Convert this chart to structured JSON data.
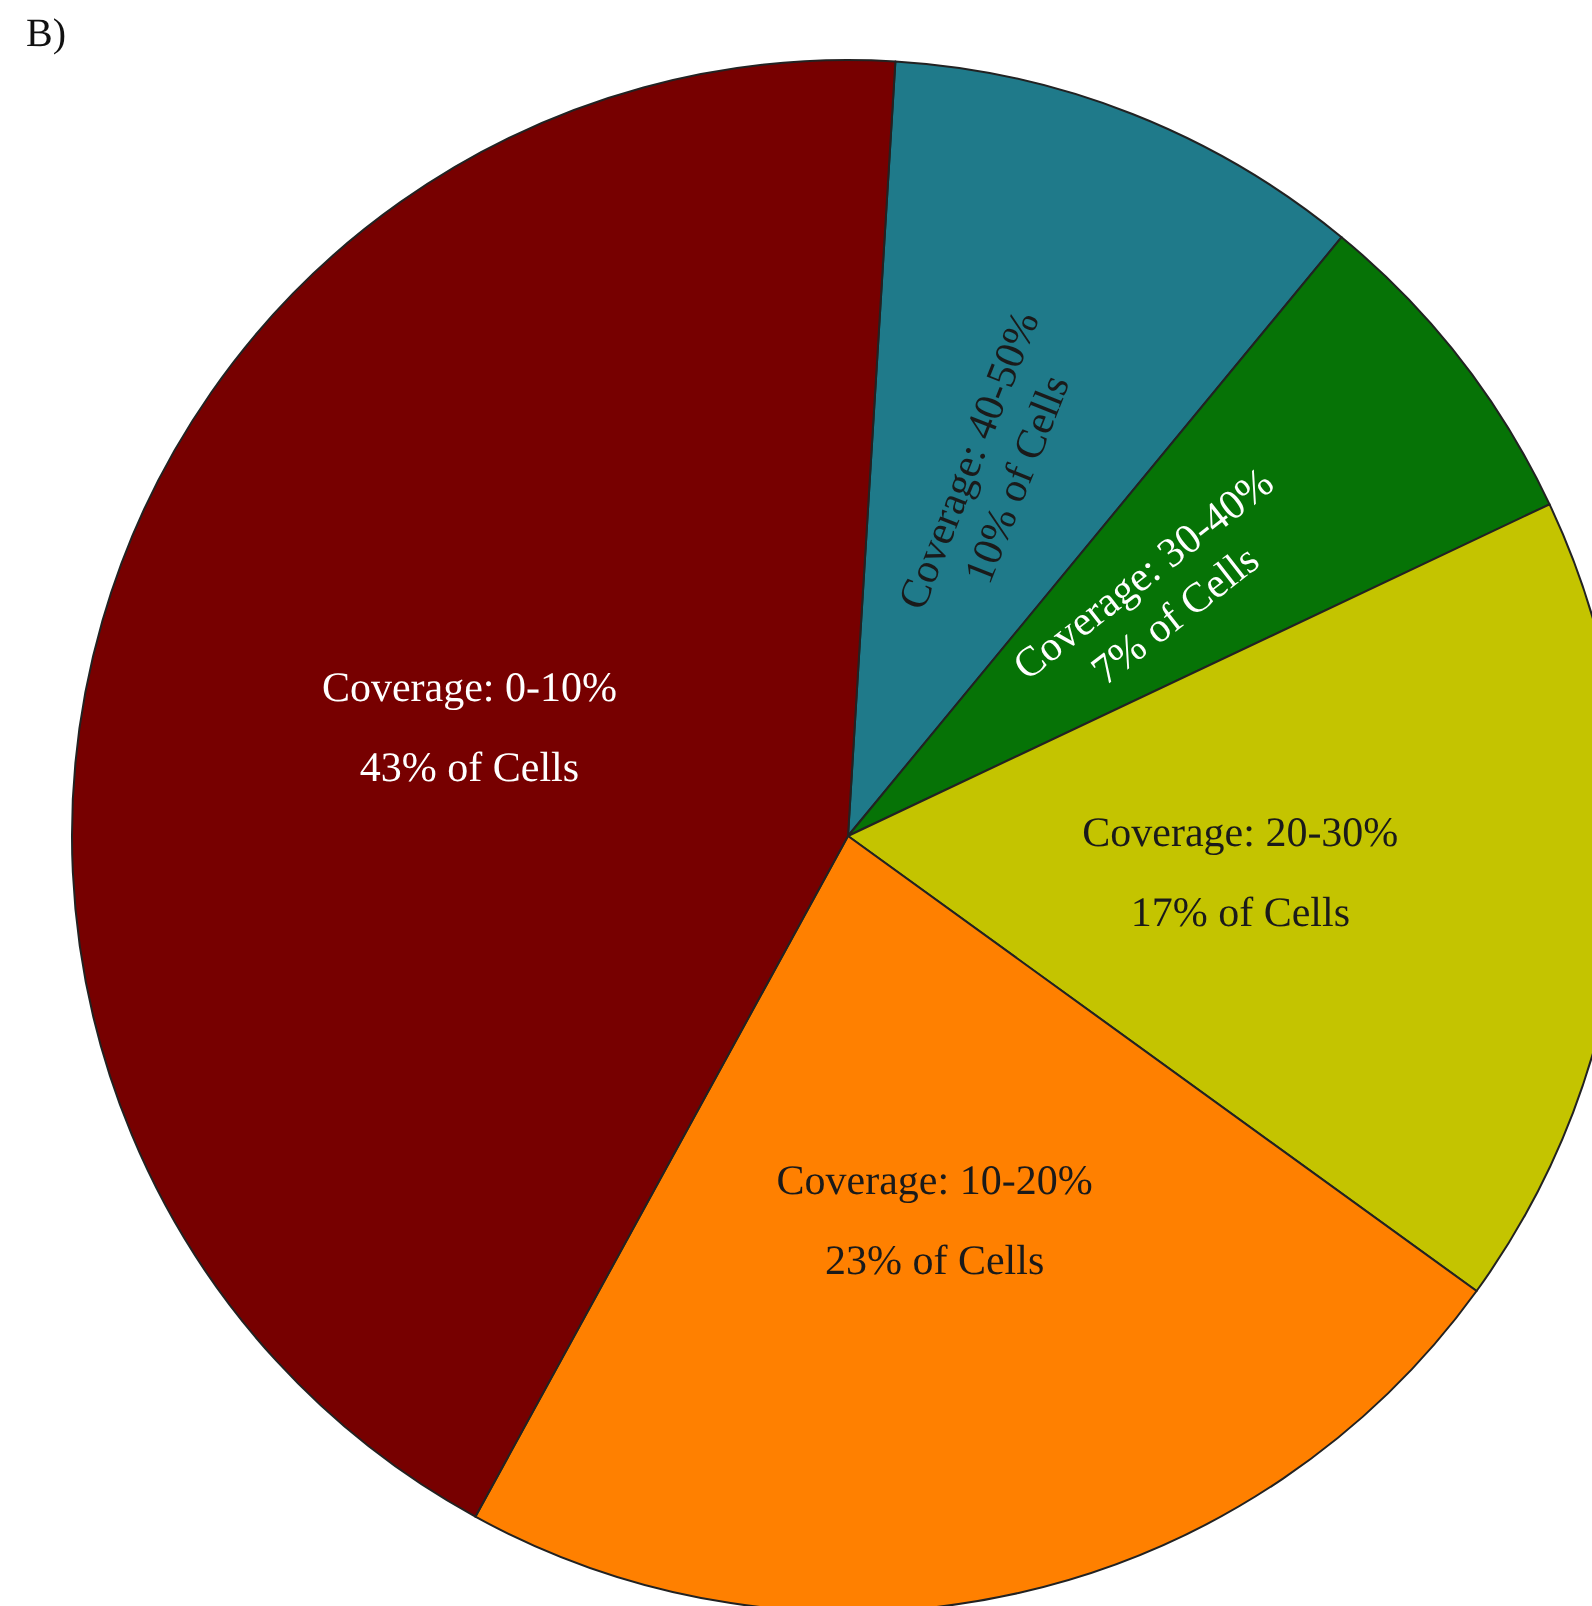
{
  "chart_data": {
    "type": "pie",
    "title": "B)",
    "categories": [
      "Coverage: 40-50%",
      "Coverage: 30-40%",
      "Coverage: 20-30%",
      "Coverage: 10-20%",
      "Coverage: 0-10%"
    ],
    "values": [
      10,
      7,
      17,
      23,
      43
    ],
    "value_labels": [
      "10% of Cells",
      "7% of Cells",
      "17% of Cells",
      "23% of Cells",
      "43% of Cells"
    ],
    "colors": [
      "#1f7a8a",
      "#067306",
      "#c4c400",
      "#ff8000",
      "#770000"
    ],
    "legend": false
  }
}
